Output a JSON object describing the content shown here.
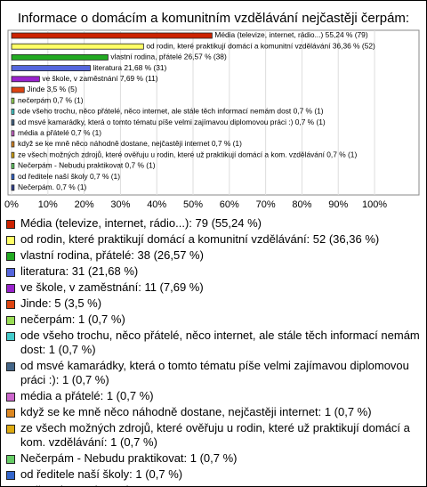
{
  "chart_data": {
    "type": "bar",
    "orientation": "horizontal",
    "title": "Informace o domácím a komunitním vzdělávání nejčastěji čerpám:",
    "categories": [
      "Média (televize, internet, rádio...): 79 (55,24 %)",
      "od rodin, které praktikují domácí a komunitní vzdělávání: 52 (36,36 %)",
      "vlastní rodina, přátelé: 38 (26,57 %)",
      "literatura: 31 (21,68 %)",
      "ve škole, v zaměstnání: 11 (7,69 %)",
      "Jinde: 5 (3,5 %)",
      "nečerpám: 1 (0,7 %)",
      "ode všeho trochu, něco přátelé, něco internet, ale stále těch informací nemám dost: 1 (0,7 %)",
      "od msvé kamarádky, která o tomto tématu píše velmi zajímavou diplomovou práci :): 1 (0,7 %)",
      "média a přátelé: 1 (0,7 %)",
      "když se ke mně něco náhodně dostane, nejčastěji internet: 1 (0,7 %)",
      "ze všech možných zdrojů, které ověřuju u rodin, které už praktikují domácí a kom. vzdělávání: 1 (0,7 %)",
      "Nečerpám - Nebudu praktikovat: 1 (0,7 %)",
      "od ředitele naší školy: 1 (0,7 %)",
      "Nečerpám.: 1 (0,7 %)"
    ],
    "values": [
      55.24,
      36.36,
      26.57,
      21.68,
      7.69,
      3.5,
      0.7,
      0.7,
      0.7,
      0.7,
      0.7,
      0.7,
      0.7,
      0.7,
      0.7
    ],
    "value_labels": [
      "Média (televize, internet, rádio...) 55,24 % (79)",
      "od rodin, které praktikují domácí a komunitní vzdělávání 36,36 % (52)",
      "vlastní rodina, přátelé 26,57 % (38)",
      "literatura 21,68 % (31)",
      "ve škole, v zaměstnání 7,69 % (11)",
      "Jinde 3,5 % (5)",
      "nečerpám 0,7 % (1)",
      "ode všeho trochu, něco přátelé, něco internet, ale stále těch informací nemám dost 0,7 % (1)",
      "od msvé kamarádky, která o tomto tématu píše velmi zajímavou diplomovou práci :) 0,7 % (1)",
      "média a přátelé 0,7 % (1)",
      "když se ke mně něco náhodně dostane, nejčastěji internet 0,7 % (1)",
      "ze všech možných zdrojů, které ověřuju u rodin, které už praktikují domácí a kom. vzdělávání 0,7 % (1)",
      "Nečerpám - Nebudu praktikovat 0,7 % (1)",
      "od ředitele naší školy 0,7 % (1)",
      "Nečerpám. 0,7 % (1)"
    ],
    "colors": [
      "#cc2200",
      "#ffff66",
      "#22aa22",
      "#5566dd",
      "#9922cc",
      "#dd4411",
      "#99dd55",
      "#44cccc",
      "#446688",
      "#cc66cc",
      "#dd8822",
      "#ddaa11",
      "#66cc66",
      "#3366cc",
      "#334499"
    ],
    "xlim": [
      0,
      112
    ],
    "xticks": [
      {
        "value": 0,
        "label": "0%"
      },
      {
        "value": 10,
        "label": "10%"
      },
      {
        "value": 20,
        "label": "20%"
      },
      {
        "value": 30,
        "label": "30%"
      },
      {
        "value": 40,
        "label": "40%"
      },
      {
        "value": 50,
        "label": "50%"
      },
      {
        "value": 60,
        "label": "60%"
      },
      {
        "value": 70,
        "label": "70%"
      },
      {
        "value": 80,
        "label": "80%"
      },
      {
        "value": 90,
        "label": "90%"
      },
      {
        "value": 100,
        "label": "100%"
      }
    ],
    "grid": true
  }
}
